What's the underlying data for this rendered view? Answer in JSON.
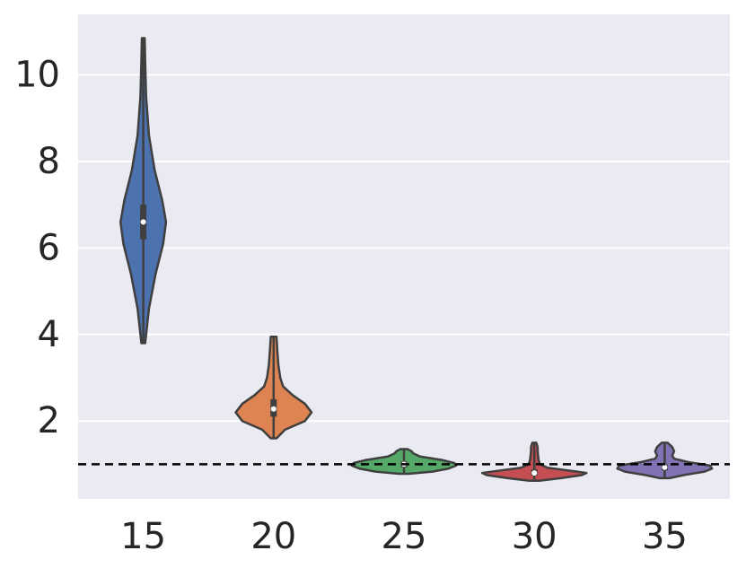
{
  "chart_data": {
    "type": "violin",
    "title": "",
    "xlabel": "",
    "ylabel": "",
    "categories": [
      "15",
      "20",
      "25",
      "30",
      "35"
    ],
    "y_ticks": [
      2,
      4,
      6,
      8,
      10
    ],
    "y_tick_labels": [
      "2",
      "4",
      "6",
      "8",
      "10"
    ],
    "ylim": [
      0.2,
      11.4
    ],
    "grid": true,
    "background_color": "#eaeaf2",
    "reference_line": {
      "y": 1.0,
      "style": "dashed",
      "color": "#000000"
    },
    "series": [
      {
        "category": "15",
        "color": "#4c72b0",
        "min": 3.8,
        "max": 10.85,
        "q1": 6.2,
        "median": 6.6,
        "q3": 7.0,
        "density": [
          [
            3.8,
            0.02
          ],
          [
            4.6,
            0.06
          ],
          [
            5.4,
            0.13
          ],
          [
            6.1,
            0.21
          ],
          [
            6.6,
            0.24
          ],
          [
            7.1,
            0.2
          ],
          [
            7.8,
            0.12
          ],
          [
            8.6,
            0.06
          ],
          [
            9.5,
            0.03
          ],
          [
            10.3,
            0.02
          ],
          [
            10.85,
            0.015
          ]
        ]
      },
      {
        "category": "20",
        "color": "#dd8452",
        "min": 1.6,
        "max": 3.95,
        "q1": 2.1,
        "median": 2.28,
        "q3": 2.5,
        "density": [
          [
            1.6,
            0.03
          ],
          [
            1.8,
            0.12
          ],
          [
            2.0,
            0.33
          ],
          [
            2.2,
            0.4
          ],
          [
            2.4,
            0.33
          ],
          [
            2.6,
            0.2
          ],
          [
            2.8,
            0.1
          ],
          [
            3.0,
            0.07
          ],
          [
            3.3,
            0.05
          ],
          [
            3.6,
            0.04
          ],
          [
            3.95,
            0.03
          ]
        ]
      },
      {
        "category": "25",
        "color": "#55a868",
        "min": 0.78,
        "max": 1.35,
        "q1": 0.93,
        "median": 1.0,
        "q3": 1.07,
        "density": [
          [
            0.78,
            0.05
          ],
          [
            0.83,
            0.3
          ],
          [
            0.9,
            0.47
          ],
          [
            0.97,
            0.55
          ],
          [
            1.03,
            0.53
          ],
          [
            1.1,
            0.4
          ],
          [
            1.18,
            0.17
          ],
          [
            1.25,
            0.1
          ],
          [
            1.3,
            0.08
          ],
          [
            1.35,
            0.04
          ]
        ]
      },
      {
        "category": "30",
        "color": "#c44e52",
        "min": 0.62,
        "max": 1.5,
        "q1": 0.74,
        "median": 0.8,
        "q3": 0.88,
        "density": [
          [
            0.62,
            0.05
          ],
          [
            0.68,
            0.28
          ],
          [
            0.75,
            0.5
          ],
          [
            0.8,
            0.55
          ],
          [
            0.86,
            0.35
          ],
          [
            0.92,
            0.14
          ],
          [
            1.0,
            0.06
          ],
          [
            1.1,
            0.045
          ],
          [
            1.2,
            0.04
          ],
          [
            1.3,
            0.035
          ],
          [
            1.4,
            0.035
          ],
          [
            1.5,
            0.02
          ]
        ]
      },
      {
        "category": "35",
        "color": "#8172b3",
        "min": 0.68,
        "max": 1.5,
        "q1": 0.86,
        "median": 0.93,
        "q3": 1.0,
        "density": [
          [
            0.68,
            0.05
          ],
          [
            0.75,
            0.2
          ],
          [
            0.83,
            0.42
          ],
          [
            0.9,
            0.5
          ],
          [
            0.97,
            0.48
          ],
          [
            1.05,
            0.25
          ],
          [
            1.13,
            0.1
          ],
          [
            1.2,
            0.08
          ],
          [
            1.3,
            0.1
          ],
          [
            1.4,
            0.08
          ],
          [
            1.5,
            0.03
          ]
        ]
      }
    ]
  }
}
